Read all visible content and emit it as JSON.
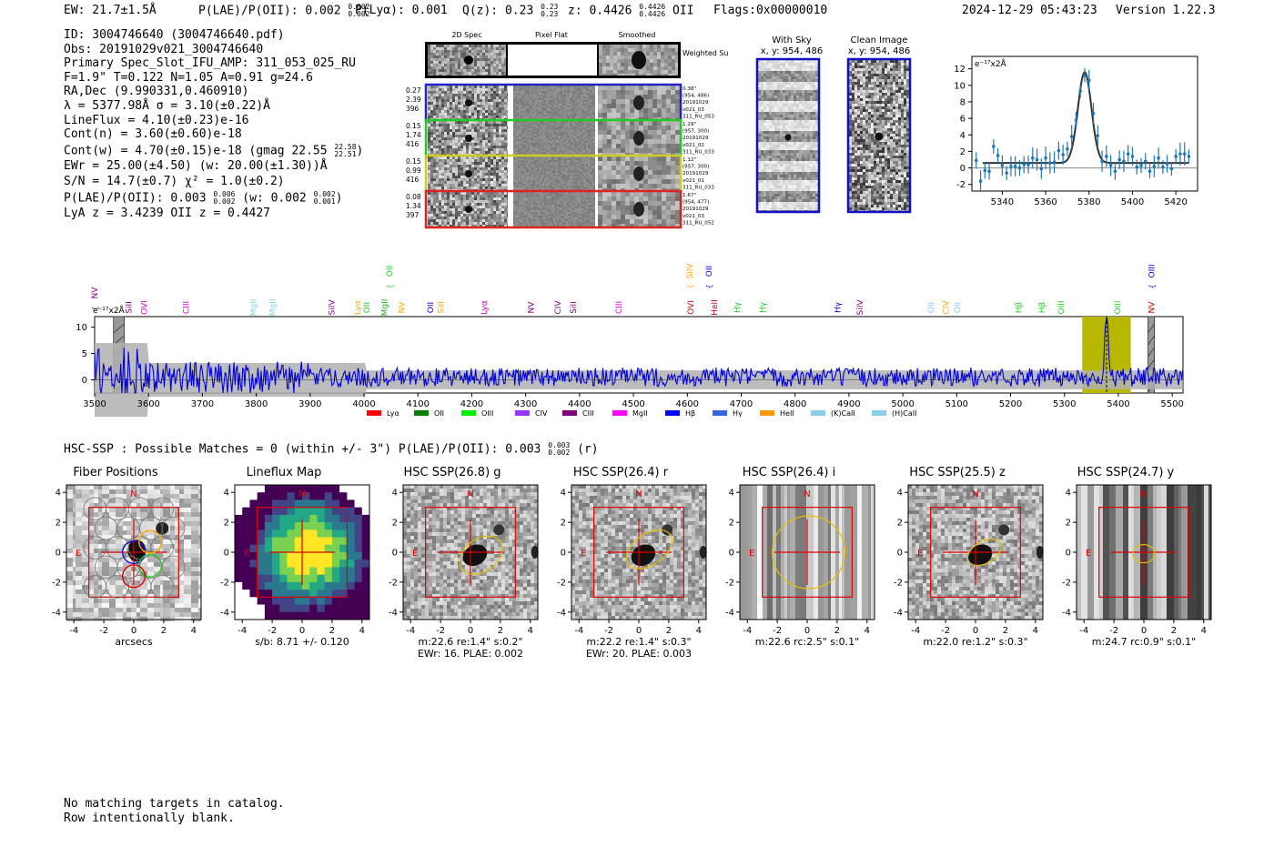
{
  "header": {
    "ew": "EW: 21.7±1.5Å",
    "plae_label": "P(LAE)/P(OII): 0.002",
    "plae_hi": "0.002",
    "plae_lo": "0.002",
    "plya": "P(Lyα): 0.001",
    "qz_label": "Q(z): 0.23",
    "qz_hi": "0.23",
    "qz_lo": "0.23",
    "z_label": "z: 0.4426",
    "z_hi": "0.4426",
    "z_lo": "0.4426",
    "z_line": "OII",
    "flags": "Flags:0x00000010",
    "datetime": "2024-12-29 05:43:23",
    "version": "Version 1.22.3"
  },
  "info": {
    "lines": [
      "ID: 3004746640 (3004746640.pdf)",
      "Obs: 20191029v021_3004746640",
      "Primary Spec_Slot_IFU_AMP: 311_053_025_RU",
      "F=1.9\"  T=0.122  N=1.05  A=0.91  g=24.6",
      "RA,Dec (9.990331,0.460910)",
      "λ = 5377.98Å  σ = 3.10(±0.22)Å",
      "LineFlux = 4.10(±0.23)e-16",
      "Cont(n) = 3.60(±0.60)e-18"
    ],
    "contw": "Cont(w) = 4.70(±0.15)e-18 (gmag 22.55",
    "contw_hi": "22.58",
    "contw_lo": "22.51",
    "ewr": "EWr = 25.00(±4.50) (w: 20.00(±1.30))Å",
    "sn": "S/N = 14.7(±0.7)  χ² = 1.0(±0.2)",
    "plae": "P(LAE)/P(OII): 0.003",
    "plae_hi": "0.006",
    "plae_lo": "0.002",
    "plae_w": "(w: 0.002",
    "plae_w_hi": "0.002",
    "plae_w_lo": "0.001",
    "z": "LyA z = 3.4239   OII z = 0.4427"
  },
  "stamps": {
    "col_headers": [
      "2D Spec",
      "Pixel Flat",
      "Smoothed"
    ],
    "weighted": "Weighted Sum",
    "rows": [
      {
        "left": [
          "0.27",
          "2.39",
          "396"
        ],
        "right": [
          "0.38\"",
          "(954, 486)",
          "20191029",
          "v021_03",
          "311_RU_053"
        ],
        "color": "#2222cc"
      },
      {
        "left": [
          "0.15",
          "1.74",
          "416"
        ],
        "right": [
          "1.29\"",
          "(957, 300)",
          "20191029",
          "v021_02",
          "311_RU_033"
        ],
        "color": "#22cc22"
      },
      {
        "left": [
          "0.15",
          "0.99",
          "416"
        ],
        "right": [
          "1.12\"",
          "(957, 300)",
          "20191029",
          "v021_01",
          "311_RU_033"
        ],
        "color": "#cccc22"
      },
      {
        "left": [
          "0.08",
          "1.34",
          "397"
        ],
        "right": [
          "1.67\"",
          "(954, 477)",
          "20191029",
          "v021_03",
          "311_RU_052"
        ],
        "color": "#dd2222"
      }
    ]
  },
  "sky": {
    "with_sky": "With Sky",
    "with_sky_xy": "x, y: 954, 486",
    "clean": "Clean Image",
    "clean_xy": "x, y: 954, 486"
  },
  "zoom_chart": {
    "unit": "e⁻¹⁷x2Å",
    "x_ticks": [
      "5340",
      "5360",
      "5380",
      "5400",
      "5420"
    ],
    "y_ticks": [
      "-2",
      "0",
      "2",
      "4",
      "6",
      "8",
      "10",
      "12"
    ]
  },
  "chart_data": [
    {
      "type": "scatter",
      "title": "",
      "xlabel": "",
      "ylabel": "e⁻¹⁷x2Å",
      "xlim": [
        5326,
        5430
      ],
      "ylim": [
        -2.8,
        13.5
      ],
      "x": [
        5328,
        5330,
        5332,
        5334,
        5336,
        5338,
        5340,
        5342,
        5344,
        5346,
        5348,
        5350,
        5352,
        5354,
        5356,
        5358,
        5360,
        5362,
        5364,
        5366,
        5368,
        5370,
        5372,
        5374,
        5376,
        5378,
        5380,
        5382,
        5384,
        5386,
        5388,
        5390,
        5392,
        5394,
        5396,
        5398,
        5400,
        5402,
        5404,
        5406,
        5408,
        5410,
        5412,
        5414,
        5416,
        5418,
        5420,
        5422,
        5424,
        5426
      ],
      "y": [
        0.9,
        -1.6,
        -0.3,
        -0.4,
        2.6,
        1.5,
        0.3,
        -0.6,
        0.2,
        0.2,
        0.0,
        0.4,
        0.4,
        1.2,
        1.0,
        -0.1,
        1.2,
        0.6,
        0.7,
        2.1,
        1.6,
        2.3,
        3.8,
        5.8,
        9.3,
        11.2,
        10.6,
        6.6,
        3.9,
        0.8,
        1.4,
        0.3,
        -0.4,
        1.0,
        0.8,
        1.7,
        1.4,
        0.1,
        0.3,
        0.8,
        -0.4,
        0.2,
        1.2,
        0.1,
        0.5,
        -0.1,
        1.4,
        1.7,
        1.7,
        1.4
      ],
      "fit": {
        "amplitude": 11.0,
        "center": 5378,
        "sigma": 3.1,
        "continuum": 0.6
      }
    },
    {
      "type": "line",
      "title": "",
      "xlabel": "",
      "ylabel": "e⁻¹⁷x2Å",
      "xlim": [
        3500,
        5520
      ],
      "ylim": [
        -2.5,
        12
      ],
      "x_ticks": [
        "3500",
        "3600",
        "3700",
        "3800",
        "3900",
        "4000",
        "4100",
        "4200",
        "4300",
        "4400",
        "4500",
        "4600",
        "4700",
        "4800",
        "4900",
        "5000",
        "5100",
        "5200",
        "5300",
        "5400",
        "5500"
      ],
      "y_ticks": [
        "0",
        "5",
        "10"
      ],
      "highlight_range": [
        5333,
        5423
      ],
      "emission_peak": {
        "x": 5378,
        "y": 11.0
      }
    }
  ],
  "spectrum": {
    "unit": "e⁻¹⁷x2Å",
    "line_labels": [
      {
        "name": "NV",
        "x": 3500,
        "row": 0,
        "color": "#800080"
      },
      {
        "name": "SiII",
        "x": 3563,
        "row": 1,
        "color": "#800080"
      },
      {
        "name": "OVI",
        "x": 3592,
        "row": 1,
        "color": "#cc00cc"
      },
      {
        "name": "CIII",
        "x": 3670,
        "row": 1,
        "color": "#cc00cc"
      },
      {
        "name": "MgII",
        "x": 3795,
        "row": 1,
        "color": "#87ceeb"
      },
      {
        "name": "MgII",
        "x": 3830,
        "row": 1,
        "color": "#87ceeb"
      },
      {
        "name": "SiIV",
        "x": 3940,
        "row": 1,
        "color": "#800080"
      },
      {
        "name": "Lyα",
        "x": 3988,
        "row": 1,
        "color": "#ffa500"
      },
      {
        "name": "OII",
        "x": 4005,
        "row": 1,
        "color": "#22cc22"
      },
      {
        "name": "MgII",
        "x": 4038,
        "row": 1,
        "color": "#22aa22"
      },
      {
        "name": "OII",
        "x": 4047,
        "row": 2,
        "color": "#22cc22"
      },
      {
        "name": "NV",
        "x": 4070,
        "row": 1,
        "color": "#ffa500"
      },
      {
        "name": "OII",
        "x": 4123,
        "row": 1,
        "color": "#0000cc"
      },
      {
        "name": "SiII",
        "x": 4143,
        "row": 1,
        "color": "#ffa500"
      },
      {
        "name": "Lyα",
        "x": 4223,
        "row": 1,
        "color": "#cc00cc"
      },
      {
        "name": "NV",
        "x": 4310,
        "row": 1,
        "color": "#800080"
      },
      {
        "name": "CIV",
        "x": 4360,
        "row": 1,
        "color": "#800080"
      },
      {
        "name": "SiII",
        "x": 4388,
        "row": 1,
        "color": "#800080"
      },
      {
        "name": "CIII",
        "x": 4473,
        "row": 1,
        "color": "#cc00cc"
      },
      {
        "name": "SiIV",
        "x": 4605,
        "row": 2,
        "color": "#ffa500"
      },
      {
        "name": "OVI",
        "x": 4606,
        "row": 1,
        "color": "#cc0000"
      },
      {
        "name": "OII",
        "x": 4640,
        "row": 2,
        "color": "#0000cc"
      },
      {
        "name": "HeII",
        "x": 4650,
        "row": 1,
        "color": "#cc0000"
      },
      {
        "name": "Hγ",
        "x": 4692,
        "row": 1,
        "color": "#22cc22"
      },
      {
        "name": "Hγ",
        "x": 4740,
        "row": 1,
        "color": "#22cc22"
      },
      {
        "name": "Hγ",
        "x": 4879,
        "row": 1,
        "color": "#0000cc"
      },
      {
        "name": "SiIV",
        "x": 4920,
        "row": 1,
        "color": "#800080"
      },
      {
        "name": "OII",
        "x": 5052,
        "row": 1,
        "color": "#87ceeb"
      },
      {
        "name": "CIV",
        "x": 5080,
        "row": 1,
        "color": "#ffa500"
      },
      {
        "name": "OII",
        "x": 5101,
        "row": 1,
        "color": "#87ceeb"
      },
      {
        "name": "Hβ",
        "x": 5215,
        "row": 1,
        "color": "#22cc22"
      },
      {
        "name": "Hβ",
        "x": 5258,
        "row": 1,
        "color": "#22cc22"
      },
      {
        "name": "OIII",
        "x": 5294,
        "row": 1,
        "color": "#22cc22"
      },
      {
        "name": "OIII",
        "x": 5398,
        "row": 1,
        "color": "#22cc22"
      },
      {
        "name": "NV",
        "x": 5462,
        "row": 1,
        "color": "#cc0000"
      },
      {
        "name": "OIII",
        "x": 5462,
        "row": 2,
        "color": "#0000cc"
      }
    ],
    "legend": [
      {
        "name": "Lyα",
        "color": "#ff0000"
      },
      {
        "name": "OII",
        "color": "#008000"
      },
      {
        "name": "OIII",
        "color": "#00ee00"
      },
      {
        "name": "CIV",
        "color": "#9933ff"
      },
      {
        "name": "CIII",
        "color": "#800080"
      },
      {
        "name": "MgII",
        "color": "#ff00ff"
      },
      {
        "name": "Hβ",
        "color": "#0000ff"
      },
      {
        "name": "Hγ",
        "color": "#3366dd"
      },
      {
        "name": "HeII",
        "color": "#ff9900"
      },
      {
        "name": "(K)CaII",
        "color": "#87ceeb"
      },
      {
        "name": "(H)CaII",
        "color": "#87ceeb"
      }
    ]
  },
  "hsc": {
    "summary": "HSC-SSP : Possible Matches = 0 (within +/- 3\")  P(LAE)/P(OII): 0.003",
    "summary_hi": "0.003",
    "summary_lo": "0.002",
    "summary_band": "(r)",
    "axis_ticks": [
      "-4",
      "-2",
      "0",
      "2",
      "4"
    ],
    "compass_n": "N",
    "compass_e": "E",
    "panels": [
      {
        "title": "Fiber Positions",
        "caption1": "arcsecs",
        "caption2": ""
      },
      {
        "title": "Lineflux Map",
        "caption1": "s/b: 8.71 +/- 0.120",
        "caption2": ""
      },
      {
        "title": "HSC SSP(26.8) g",
        "caption1": "m:22.6  re:1.4\"  s:0.2\"",
        "caption2": "EWr: 16. PLAE: 0.002"
      },
      {
        "title": "HSC SSP(26.4) r",
        "caption1": "m:22.2  re:1.4\"  s:0.3\"",
        "caption2": "EWr: 20. PLAE: 0.003"
      },
      {
        "title": "HSC SSP(26.4) i",
        "caption1": "m:22.6  rc:2.5\"  s:0.1\"",
        "caption2": ""
      },
      {
        "title": "HSC SSP(25.5) z",
        "caption1": "m:22.0  re:1.2\"  s:0.3\"",
        "caption2": ""
      },
      {
        "title": "HSC SSP(24.7) y",
        "caption1": "m:24.7  rc:0.9\"  s:0.1\"",
        "caption2": ""
      }
    ]
  },
  "footer": {
    "line1": "No matching targets in catalog.",
    "line2": "Row intentionally blank."
  }
}
